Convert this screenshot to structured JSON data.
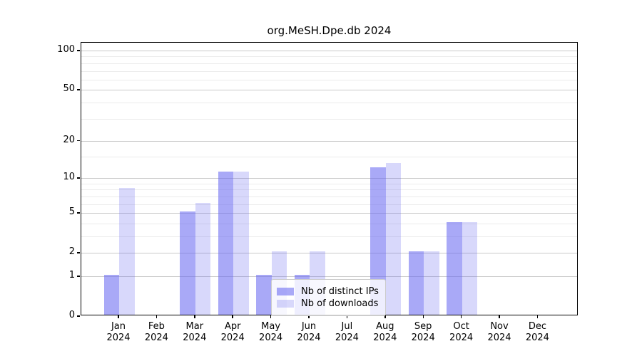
{
  "chart_data": {
    "type": "bar",
    "title": "org.MeSH.Dpe.db 2024",
    "categories": [
      "Jan",
      "Feb",
      "Mar",
      "Apr",
      "May",
      "Jun",
      "Jul",
      "Aug",
      "Sep",
      "Oct",
      "Nov",
      "Dec"
    ],
    "category_year": "2024",
    "series": [
      {
        "name": "Nb of distinct IPs",
        "color": "rgba(99,99,240,0.55)",
        "values": [
          1,
          0,
          5,
          11,
          1,
          1,
          0,
          12,
          2,
          4,
          0,
          0
        ]
      },
      {
        "name": "Nb of downloads",
        "color": "rgba(99,99,240,0.25)",
        "values": [
          8,
          0,
          6,
          11,
          2,
          2,
          0,
          13,
          2,
          4,
          0,
          0
        ]
      }
    ],
    "yscale": "log1p",
    "ylim": [
      0,
      115
    ],
    "yticks_major": [
      0,
      1,
      2,
      5,
      10,
      20,
      50,
      100
    ],
    "yticks_minor": [
      3,
      4,
      6,
      7,
      8,
      9,
      15,
      30,
      40,
      60,
      70,
      80,
      90
    ],
    "grid": true,
    "legend_position": "lower-center",
    "colors": {
      "major_grid": "#c9c9c9",
      "minor_grid": "#ebebeb",
      "axis": "#000000",
      "text": "#000000",
      "background": "#ffffff"
    }
  }
}
